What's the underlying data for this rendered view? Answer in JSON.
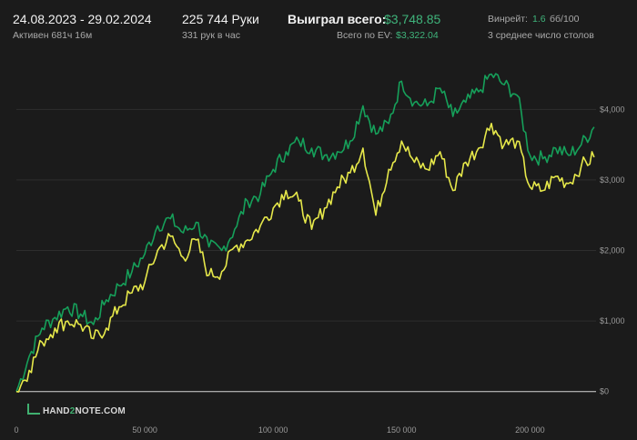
{
  "header": {
    "date_range": "24.08.2023 - 29.02.2024",
    "active_time": "Активен 681ч 16м",
    "hands": "225 744 Руки",
    "hands_per_hour": "331 рук в час",
    "won_total_label": "Выиграл всего:",
    "won_total_value": "$3,748.85",
    "ev_total_label": "Всего по EV:",
    "ev_total_value": "$3,322.04",
    "winrate_label": "Винрейт:",
    "winrate_value": "1.6",
    "winrate_unit": "бб/100",
    "tables_avg": "3 среднее число столов"
  },
  "logo": {
    "left": "HAND",
    "num": "2",
    "right": "NOTE.COM"
  },
  "colors": {
    "background": "#1b1b1b",
    "won": "#16a05a",
    "ev": "#e6e84a",
    "zero_line": "#d8d8d8",
    "grid": "#2e2e2e"
  },
  "chart_data": {
    "type": "line",
    "xlabel": "",
    "ylabel": "",
    "xlim": [
      0,
      225744
    ],
    "ylim": [
      -300,
      4700
    ],
    "x_ticks": [
      {
        "value": 0,
        "label": "0"
      },
      {
        "value": 50000,
        "label": "50 000"
      },
      {
        "value": 100000,
        "label": "100 000"
      },
      {
        "value": 150000,
        "label": "150 000"
      },
      {
        "value": 200000,
        "label": "200 000"
      }
    ],
    "y_ticks": [
      {
        "value": 0,
        "label": "$0"
      },
      {
        "value": 1000,
        "label": "$1,000"
      },
      {
        "value": 2000,
        "label": "$2,000"
      },
      {
        "value": 3000,
        "label": "$3,000"
      },
      {
        "value": 4000,
        "label": "$4,000"
      }
    ],
    "series": [
      {
        "key": "won",
        "x": [
          0,
          5000,
          10000,
          15000,
          20000,
          25000,
          30000,
          35000,
          40000,
          45000,
          50000,
          55000,
          60000,
          65000,
          70000,
          75000,
          80000,
          85000,
          90000,
          95000,
          100000,
          105000,
          110000,
          115000,
          120000,
          125000,
          130000,
          135000,
          140000,
          145000,
          150000,
          155000,
          160000,
          165000,
          170000,
          175000,
          180000,
          185000,
          190000,
          195000,
          200000,
          205000,
          210000,
          215000,
          220000,
          225000
        ],
        "values": [
          0,
          500,
          900,
          1050,
          1200,
          1100,
          950,
          1300,
          1500,
          1700,
          1950,
          2350,
          2450,
          2250,
          2400,
          2050,
          2000,
          2300,
          2700,
          2800,
          3150,
          3400,
          3550,
          3450,
          3350,
          3400,
          3550,
          4050,
          3650,
          3800,
          4400,
          4100,
          4050,
          4300,
          3900,
          4100,
          4250,
          4500,
          4350,
          4200,
          3350,
          3300,
          3450,
          3350,
          3500,
          3750
        ]
      },
      {
        "key": "ev",
        "x": [
          0,
          5000,
          10000,
          15000,
          20000,
          25000,
          30000,
          35000,
          40000,
          45000,
          50000,
          55000,
          60000,
          65000,
          70000,
          75000,
          80000,
          85000,
          90000,
          95000,
          100000,
          105000,
          110000,
          115000,
          120000,
          125000,
          130000,
          135000,
          140000,
          145000,
          150000,
          155000,
          160000,
          165000,
          170000,
          175000,
          180000,
          185000,
          190000,
          195000,
          200000,
          205000,
          210000,
          215000,
          220000,
          225000
        ],
        "values": [
          0,
          300,
          700,
          900,
          1000,
          950,
          750,
          900,
          1200,
          1400,
          1550,
          2000,
          2200,
          1900,
          2150,
          1650,
          1700,
          2050,
          2150,
          2350,
          2600,
          2850,
          2700,
          2300,
          2600,
          2900,
          3100,
          3450,
          2500,
          3150,
          3550,
          3250,
          3150,
          3400,
          2850,
          3250,
          3450,
          3800,
          3500,
          3550,
          2900,
          2850,
          3050,
          2950,
          3200,
          3322
        ]
      }
    ]
  }
}
